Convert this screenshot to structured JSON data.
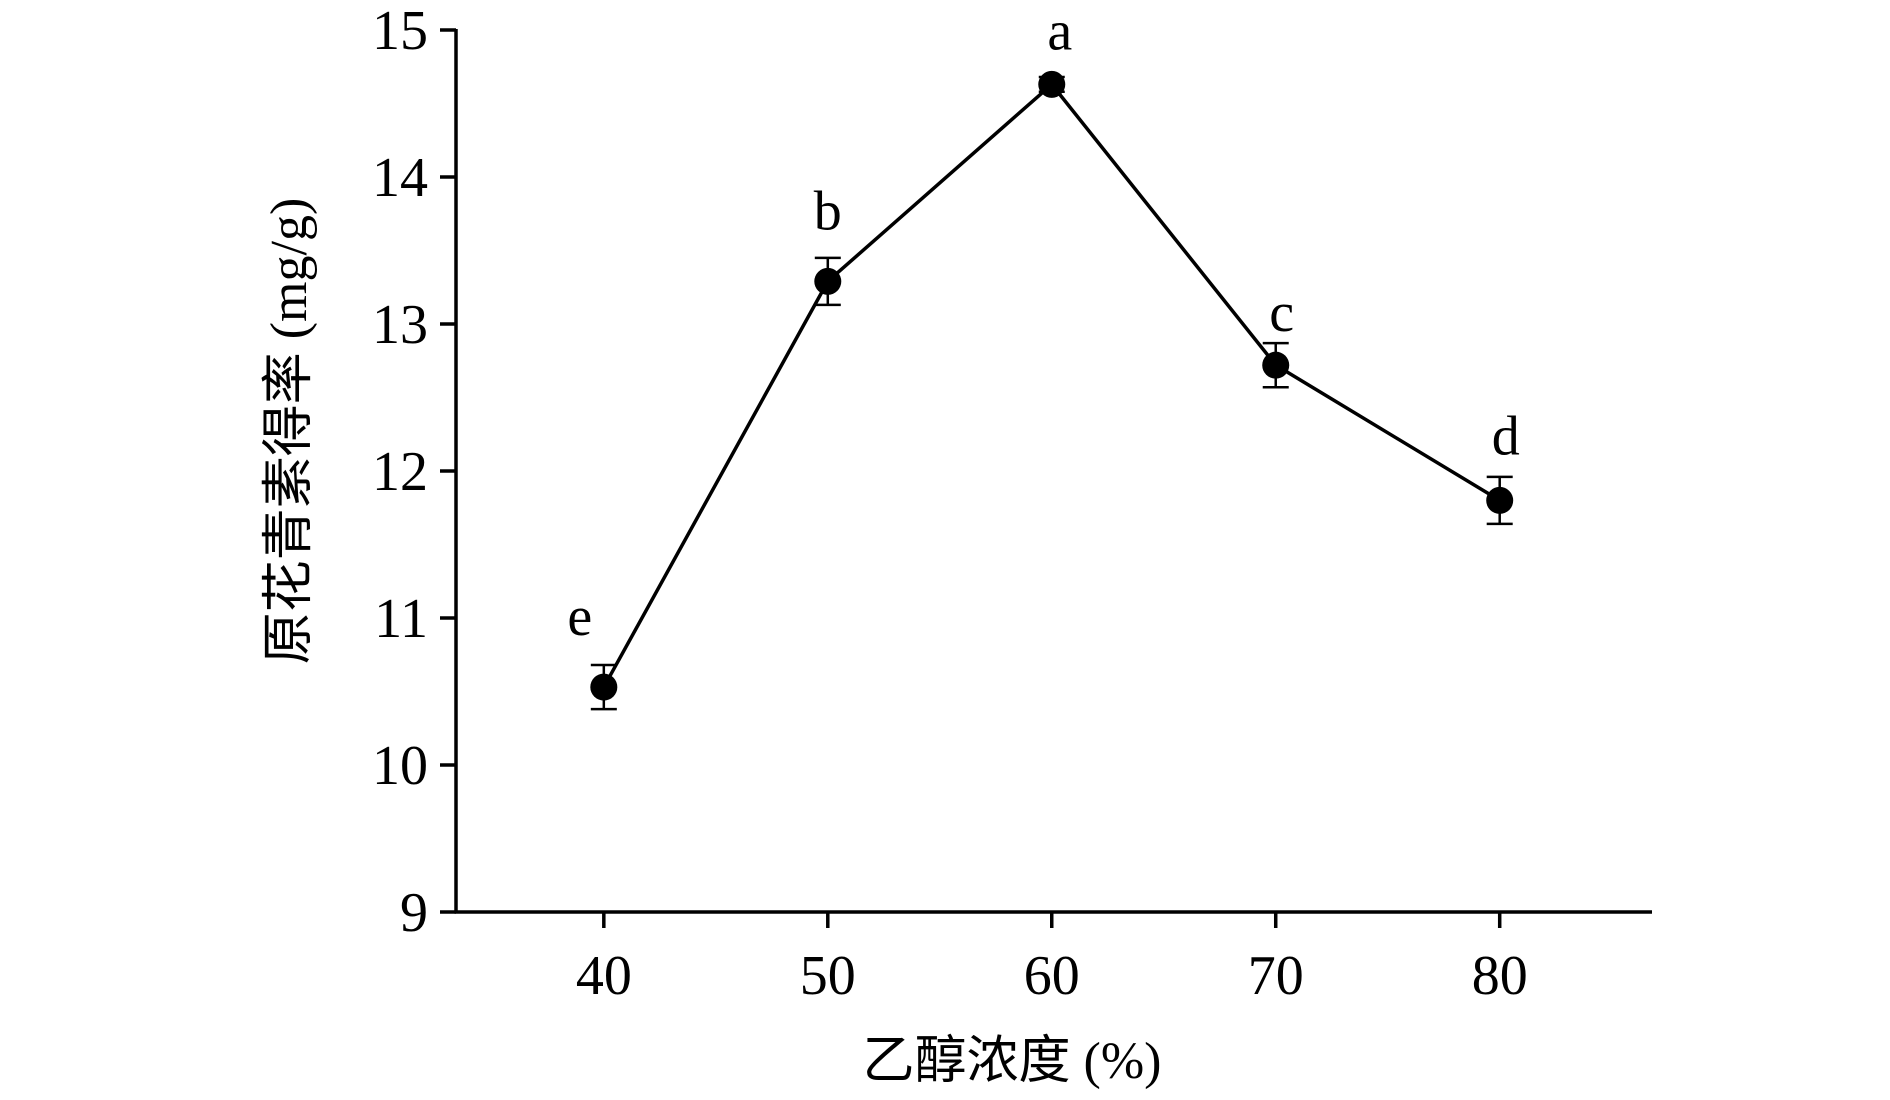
{
  "chart_data": {
    "type": "line",
    "title": "",
    "xlabel": "乙醇浓度 (%)",
    "ylabel": "原花青素得率 (mg/g)",
    "x": [
      40,
      50,
      60,
      70,
      80
    ],
    "series": [
      {
        "values": [
          10.53,
          13.29,
          14.63,
          12.72,
          11.8
        ],
        "errors": [
          0.15,
          0.16,
          0.05,
          0.15,
          0.16
        ],
        "point_labels": [
          "e",
          "b",
          "a",
          "c",
          "d"
        ]
      }
    ],
    "xticks": [
      40,
      50,
      60,
      70,
      80
    ],
    "xtick_labels": [
      "40",
      "50",
      "60",
      "70",
      "80"
    ],
    "xlim": [
      33.4,
      86.8
    ],
    "yticks": [
      9,
      10,
      11,
      12,
      13,
      14,
      15
    ],
    "ytick_labels": [
      "9",
      "10",
      "11",
      "12",
      "13",
      "14",
      "15"
    ],
    "ylim": [
      9,
      15
    ],
    "grid": false,
    "legend": "none",
    "colors": {
      "line": "#000000",
      "marker": "#000000"
    }
  }
}
